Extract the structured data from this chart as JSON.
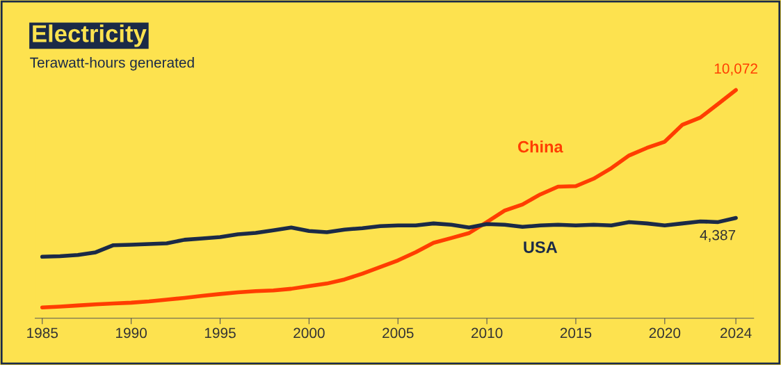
{
  "chart_data": {
    "type": "line",
    "title": "Electricity",
    "subtitle": "Terawatt-hours generated",
    "x": [
      1985,
      1986,
      1987,
      1988,
      1989,
      1990,
      1991,
      1992,
      1993,
      1994,
      1995,
      1996,
      1997,
      1998,
      1999,
      2000,
      2001,
      2002,
      2003,
      2004,
      2005,
      2006,
      2007,
      2008,
      2009,
      2010,
      2011,
      2012,
      2013,
      2014,
      2015,
      2016,
      2017,
      2018,
      2019,
      2020,
      2021,
      2022,
      2023,
      2024
    ],
    "series": [
      {
        "name": "China",
        "color": "#ff3d00",
        "values": [
          411,
          450,
          497,
          545,
          585,
          621,
          678,
          754,
          836,
          928,
          1007,
          1081,
          1134,
          1167,
          1239,
          1356,
          1472,
          1654,
          1911,
          2203,
          2500,
          2866,
          3282,
          3496,
          3715,
          4207,
          4713,
          4988,
          5432,
          5777,
          5800,
          6133,
          6604,
          7166,
          7503,
          7779,
          8534,
          8849,
          9456,
          10072
        ],
        "value_labels": [
          null,
          null,
          null,
          null,
          null,
          null,
          null,
          null,
          null,
          null,
          null,
          null,
          null,
          null,
          null,
          null,
          null,
          null,
          null,
          null,
          null,
          null,
          null,
          null,
          null,
          null,
          null,
          null,
          null,
          null,
          null,
          null,
          null,
          null,
          null,
          null,
          null,
          null,
          null,
          "10,072"
        ]
      },
      {
        "name": "USA",
        "color": "#1b2a47",
        "values": [
          2662,
          2690,
          2740,
          2860,
          3176,
          3200,
          3230,
          3260,
          3418,
          3478,
          3539,
          3660,
          3720,
          3841,
          3962,
          3811,
          3751,
          3872,
          3932,
          4023,
          4053,
          4053,
          4144,
          4084,
          3962,
          4114,
          4084,
          3993,
          4053,
          4084,
          4053,
          4084,
          4053,
          4205,
          4144,
          4053,
          4144,
          4235,
          4205,
          4387
        ],
        "value_labels": [
          null,
          null,
          null,
          null,
          null,
          null,
          null,
          null,
          null,
          null,
          null,
          null,
          null,
          null,
          null,
          null,
          null,
          null,
          null,
          null,
          null,
          null,
          null,
          null,
          null,
          null,
          null,
          null,
          null,
          null,
          null,
          null,
          null,
          null,
          null,
          null,
          null,
          null,
          null,
          "4,387"
        ]
      }
    ],
    "xlim": [
      1984.6,
      2025
    ],
    "xticks": [
      1985,
      1990,
      1995,
      2000,
      2005,
      2010,
      2015,
      2020,
      2024
    ],
    "tick_labels": "x",
    "grid": false,
    "legend": false,
    "line_style": "solid",
    "marker": "none"
  }
}
